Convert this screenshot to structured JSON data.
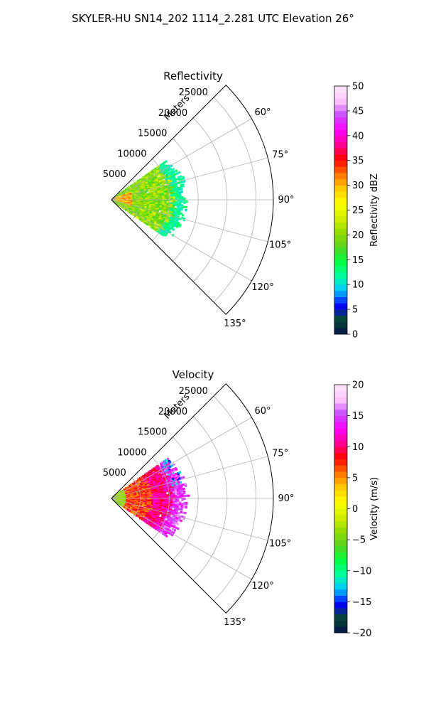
{
  "figure": {
    "title": "SKYLER-HU  SN14_202  1114_2.281 UTC Elevation 26°"
  },
  "chart_data": [
    {
      "type": "heatmap",
      "subtype": "polar-sector",
      "title": "Reflectivity",
      "range_label": "Meters",
      "radial_ticks": [
        5000,
        10000,
        15000,
        20000,
        25000
      ],
      "range_max": 28000,
      "azimuth_ticks": [
        "60°",
        "75°",
        "90°",
        "105°",
        "120°",
        "135°"
      ],
      "azimuth_values": [
        60,
        75,
        90,
        105,
        120,
        135
      ],
      "azimuth_range": [
        45,
        135
      ],
      "grid": true,
      "colorbar": {
        "label": "Reflectivity dBZ",
        "min": 0,
        "max": 50,
        "ticks": [
          "0",
          "5",
          "10",
          "15",
          "20",
          "25",
          "30",
          "35",
          "40",
          "45",
          "50"
        ],
        "stops": [
          "#03124f",
          "#064a2e",
          "#0000ff",
          "#00c8ff",
          "#00ffa0",
          "#00ff3c",
          "#5ad21e",
          "#96dc00",
          "#d7f000",
          "#ffff00",
          "#ffc800",
          "#ff6e00",
          "#ff0000",
          "#ff0096",
          "#ff00ff",
          "#c84bff",
          "#ffc8ff",
          "#ffe6ff"
        ]
      },
      "echo": {
        "az_min": 55,
        "az_max": 125,
        "r_max_m": 13000,
        "field": "reflectivity",
        "core_dbz": 34,
        "mid_dbz": 20,
        "edge_dbz": 12
      }
    },
    {
      "type": "heatmap",
      "subtype": "polar-sector",
      "title": "Velocity",
      "range_label": "Meters",
      "radial_ticks": [
        5000,
        10000,
        15000,
        20000,
        25000
      ],
      "range_max": 28000,
      "azimuth_ticks": [
        "60°",
        "75°",
        "90°",
        "105°",
        "120°",
        "135°"
      ],
      "azimuth_values": [
        60,
        75,
        90,
        105,
        120,
        135
      ],
      "azimuth_range": [
        45,
        135
      ],
      "grid": true,
      "colorbar": {
        "label": "Velocity (m/s)",
        "min": -20,
        "max": 20,
        "ticks": [
          "−20",
          "−15",
          "−10",
          "−5",
          "0",
          "5",
          "10",
          "15",
          "20"
        ],
        "stops": [
          "#03124f",
          "#064a2e",
          "#0000ff",
          "#00c8ff",
          "#00ffa0",
          "#00ff3c",
          "#5ad21e",
          "#96dc00",
          "#d7f000",
          "#ffff00",
          "#ffc800",
          "#ff6e00",
          "#ff0000",
          "#ff0096",
          "#ff00ff",
          "#c84bff",
          "#ffc8ff",
          "#ffe6ff"
        ]
      },
      "echo": {
        "az_min": 55,
        "az_max": 125,
        "r_max_m": 13000,
        "field": "velocity",
        "near_ms": -5,
        "mid_ms": 8,
        "far_ms": 15
      }
    }
  ]
}
